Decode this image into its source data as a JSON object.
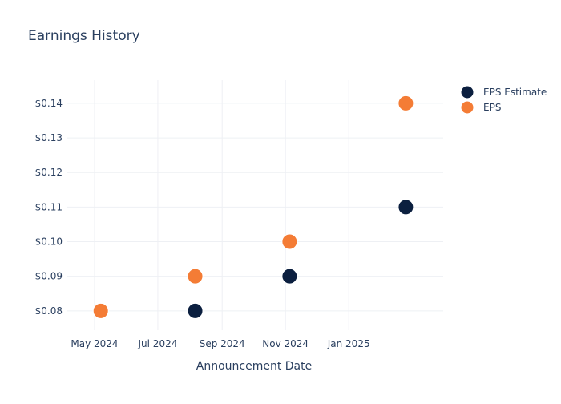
{
  "chart_data": {
    "type": "scatter",
    "title": "Earnings History",
    "xlabel": "Announcement Date",
    "ylabel": "",
    "x_ticks": [
      {
        "date": "2024-05-01",
        "label": "May 2024"
      },
      {
        "date": "2024-07-01",
        "label": "Jul 2024"
      },
      {
        "date": "2024-09-01",
        "label": "Sep 2024"
      },
      {
        "date": "2024-11-01",
        "label": "Nov 2024"
      },
      {
        "date": "2025-01-01",
        "label": "Jan 2025"
      }
    ],
    "xlim": [
      "2024-04-04",
      "2025-04-02"
    ],
    "y_ticks": [
      {
        "value": 0.08,
        "label": "$0.08"
      },
      {
        "value": 0.09,
        "label": "$0.09"
      },
      {
        "value": 0.1,
        "label": "$0.10"
      },
      {
        "value": 0.11,
        "label": "$0.11"
      },
      {
        "value": 0.12,
        "label": "$0.12"
      },
      {
        "value": 0.13,
        "label": "$0.13"
      },
      {
        "value": 0.14,
        "label": "$0.14"
      }
    ],
    "ylim": [
      0.0744,
      0.1467
    ],
    "grid": true,
    "legend_position": "top-right",
    "series": [
      {
        "name": "EPS Estimate",
        "color": "#0b1f3f",
        "points": [
          {
            "x": "2024-05-07",
            "y": 0.08
          },
          {
            "x": "2024-08-06",
            "y": 0.08
          },
          {
            "x": "2024-11-05",
            "y": 0.09
          },
          {
            "x": "2025-02-25",
            "y": 0.11
          }
        ]
      },
      {
        "name": "EPS",
        "color": "#f47c35",
        "points": [
          {
            "x": "2024-05-07",
            "y": 0.08
          },
          {
            "x": "2024-08-06",
            "y": 0.09
          },
          {
            "x": "2024-11-05",
            "y": 0.1
          },
          {
            "x": "2025-02-25",
            "y": 0.14
          }
        ]
      }
    ]
  }
}
